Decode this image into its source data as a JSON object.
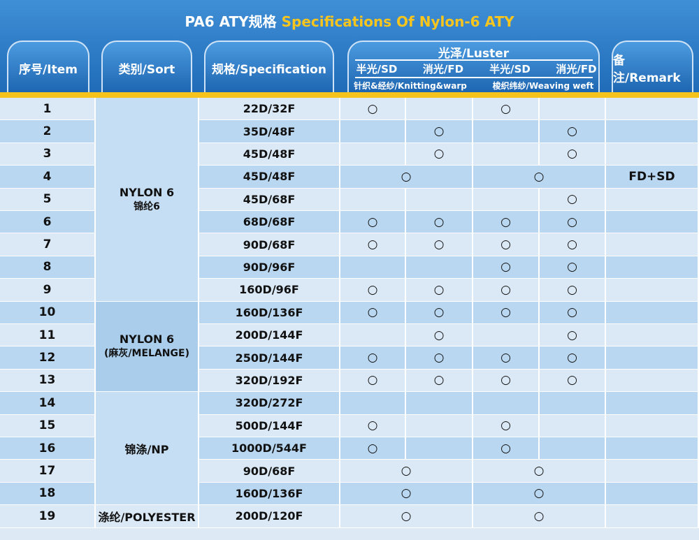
{
  "title": {
    "cn": "PA6 ATY规格",
    "en": "Specifications Of Nylon-6 ATY"
  },
  "header": {
    "item": "序号/Item",
    "sort": "类别/Sort",
    "spec": "规格/Specification",
    "luster": "光泽/Luster",
    "luster_types": [
      "半光/SD",
      "消光/FD",
      "半光/SD",
      "消光/FD"
    ],
    "luster_uses": [
      "针织&经纱/Knitting&warp",
      "梭织纬纱/Weaving weft"
    ],
    "remark": "备注/Remark"
  },
  "groups": [
    {
      "name": "NYLON 6",
      "sub": "锦纶6",
      "rows": [
        {
          "item": "1",
          "spec": "22D/32F",
          "luster": [
            "○",
            null,
            "○",
            null
          ]
        },
        {
          "item": "2",
          "spec": "35D/48F",
          "luster": [
            null,
            "○",
            null,
            "○"
          ]
        },
        {
          "item": "3",
          "spec": "45D/48F",
          "luster": [
            null,
            "○",
            null,
            "○"
          ]
        },
        {
          "item": "4",
          "spec": "45D/48F",
          "luster": [
            "○",
            "○"
          ],
          "remark": "FD+SD"
        },
        {
          "item": "5",
          "spec": "45D/68F",
          "luster": [
            null,
            null,
            null,
            "○"
          ]
        },
        {
          "item": "6",
          "spec": "68D/68F",
          "luster": [
            "○",
            "○",
            "○",
            "○"
          ]
        },
        {
          "item": "7",
          "spec": "90D/68F",
          "luster": [
            "○",
            "○",
            "○",
            "○"
          ]
        },
        {
          "item": "8",
          "spec": "90D/96F",
          "luster": [
            null,
            null,
            "○",
            "○"
          ]
        },
        {
          "item": "9",
          "spec": "160D/96F",
          "luster": [
            "○",
            "○",
            "○",
            "○"
          ]
        }
      ]
    },
    {
      "name": "NYLON 6",
      "sub": "(麻灰/MELANGE)",
      "rows": [
        {
          "item": "10",
          "spec": "160D/136F",
          "luster": [
            "○",
            "○",
            "○",
            "○"
          ]
        },
        {
          "item": "11",
          "spec": "200D/144F",
          "luster": [
            null,
            "○",
            null,
            "○"
          ]
        },
        {
          "item": "12",
          "spec": "250D/144F",
          "luster": [
            "○",
            "○",
            "○",
            "○"
          ]
        },
        {
          "item": "13",
          "spec": "320D/192F",
          "luster": [
            "○",
            "○",
            "○",
            "○"
          ]
        }
      ]
    },
    {
      "name": "锦涤/NP",
      "rows": [
        {
          "item": "14",
          "spec": "320D/272F",
          "luster": [
            null,
            null,
            null,
            null
          ]
        },
        {
          "item": "15",
          "spec": "500D/144F",
          "luster": [
            "○",
            null,
            "○",
            null
          ]
        },
        {
          "item": "16",
          "spec": "1000D/544F",
          "luster": [
            "○",
            null,
            "○",
            null
          ]
        },
        {
          "item": "17",
          "spec": "90D/68F",
          "luster": [
            "○",
            "○"
          ]
        },
        {
          "item": "18",
          "spec": "160D/136F",
          "luster": [
            "○",
            "○"
          ]
        }
      ]
    },
    {
      "name": "涤纶/POLYESTER",
      "rows": [
        {
          "item": "19",
          "spec": "200D/120F",
          "luster": [
            "○",
            "○"
          ]
        }
      ]
    }
  ]
}
